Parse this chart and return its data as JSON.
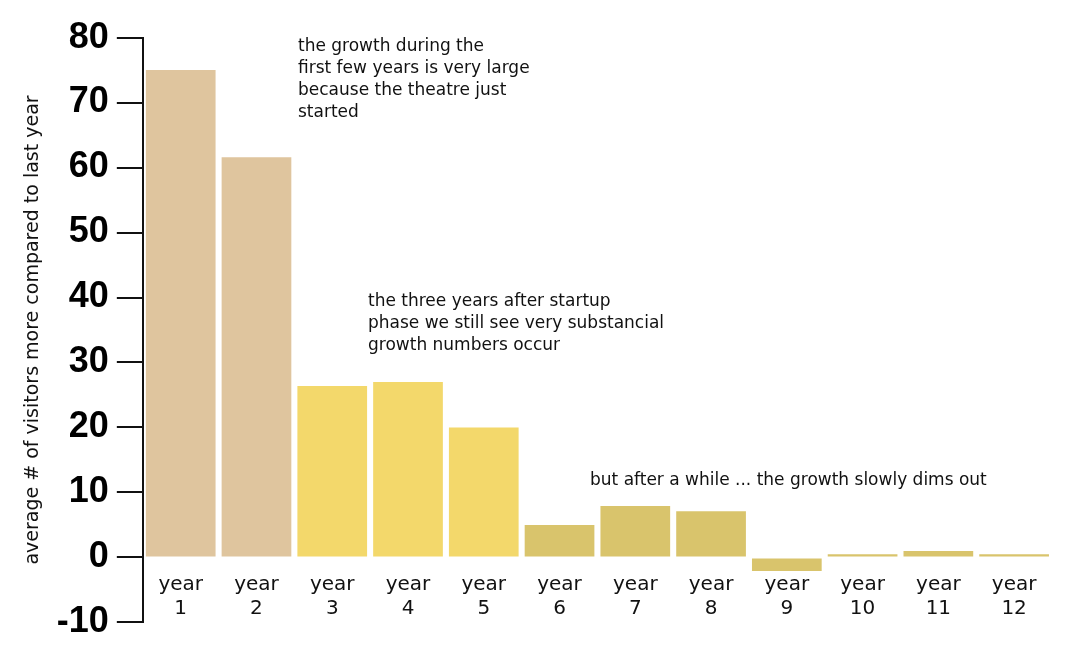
{
  "chart_data": {
    "type": "bar",
    "ylabel": "average # of visitors more compared to last year",
    "categories": [
      "year 1",
      "year 2",
      "year 3",
      "year 4",
      "year 5",
      "year 6",
      "year 7",
      "year 8",
      "year 9",
      "year 10",
      "year 11",
      "year 12"
    ],
    "values": [
      75,
      61.6,
      26.4,
      27,
      20,
      5,
      7.9,
      7.1,
      -2.1,
      0.5,
      1,
      0.5
    ],
    "colors": [
      "#dfc59e",
      "#dfc59e",
      "#f3d86b",
      "#f3d86b",
      "#f3d86b",
      "#d9c46c",
      "#d9c46c",
      "#d9c46c",
      "#d9c46c",
      "#d9c46c",
      "#d9c46c",
      "#d9c46c"
    ],
    "ylim": [
      -10,
      80
    ],
    "yticks": [
      -10,
      0,
      10,
      20,
      30,
      40,
      50,
      60,
      70,
      80
    ],
    "grid": false,
    "legend": false,
    "annotations": [
      "the growth during the\nfirst few years is very large\nbecause the theatre just\nstarted",
      "the three years after startup\nphase we still see very substancial\ngrowth numbers occur",
      "but after a while ... the growth slowly dims out"
    ]
  }
}
